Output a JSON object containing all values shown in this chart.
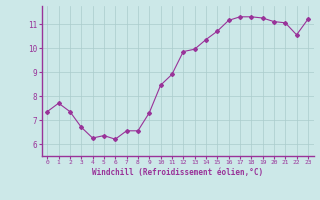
{
  "x": [
    0,
    1,
    2,
    3,
    4,
    5,
    6,
    7,
    8,
    9,
    10,
    11,
    12,
    13,
    14,
    15,
    16,
    17,
    18,
    19,
    20,
    21,
    22,
    23
  ],
  "y": [
    7.35,
    7.7,
    7.35,
    6.7,
    6.25,
    6.35,
    6.2,
    6.55,
    6.55,
    7.3,
    8.45,
    8.9,
    9.85,
    9.95,
    10.35,
    10.7,
    11.15,
    11.3,
    11.3,
    11.25,
    11.1,
    11.05,
    10.55,
    11.2
  ],
  "line_color": "#993399",
  "marker": "D",
  "marker_size": 2,
  "bg_color": "#cce8e8",
  "grid_color": "#aacccc",
  "xlabel": "Windchill (Refroidissement éolien,°C)",
  "xlabel_color": "#993399",
  "tick_color": "#993399",
  "ylim": [
    5.5,
    11.75
  ],
  "xlim": [
    -0.5,
    23.5
  ],
  "yticks": [
    6,
    7,
    8,
    9,
    10,
    11
  ],
  "xticks": [
    0,
    1,
    2,
    3,
    4,
    5,
    6,
    7,
    8,
    9,
    10,
    11,
    12,
    13,
    14,
    15,
    16,
    17,
    18,
    19,
    20,
    21,
    22,
    23
  ],
  "figure_bg": "#cce8e8"
}
